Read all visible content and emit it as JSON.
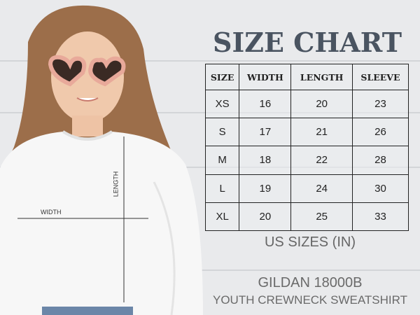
{
  "title": "SIZE CHART",
  "table": {
    "headers": [
      "SIZE",
      "WIDTH",
      "LENGTH",
      "SLEEVE"
    ],
    "rows": [
      [
        "XS",
        "16",
        "20",
        "23"
      ],
      [
        "S",
        "17",
        "21",
        "26"
      ],
      [
        "M",
        "18",
        "22",
        "28"
      ],
      [
        "L",
        "19",
        "24",
        "30"
      ],
      [
        "XL",
        "20",
        "25",
        "33"
      ]
    ]
  },
  "units_note": "US SIZES (IN)",
  "product": {
    "brand_model": "GILDAN 18000B",
    "description": "YOUTH CREWNECK SWEATSHIRT"
  },
  "measurements": {
    "width_label": "WIDTH",
    "length_label": "LENGTH"
  },
  "colors": {
    "title": "#4a5461",
    "background": "#e9eaec",
    "sweatshirt": "#f7f7f7",
    "sunglasses": "#e8a99a"
  }
}
